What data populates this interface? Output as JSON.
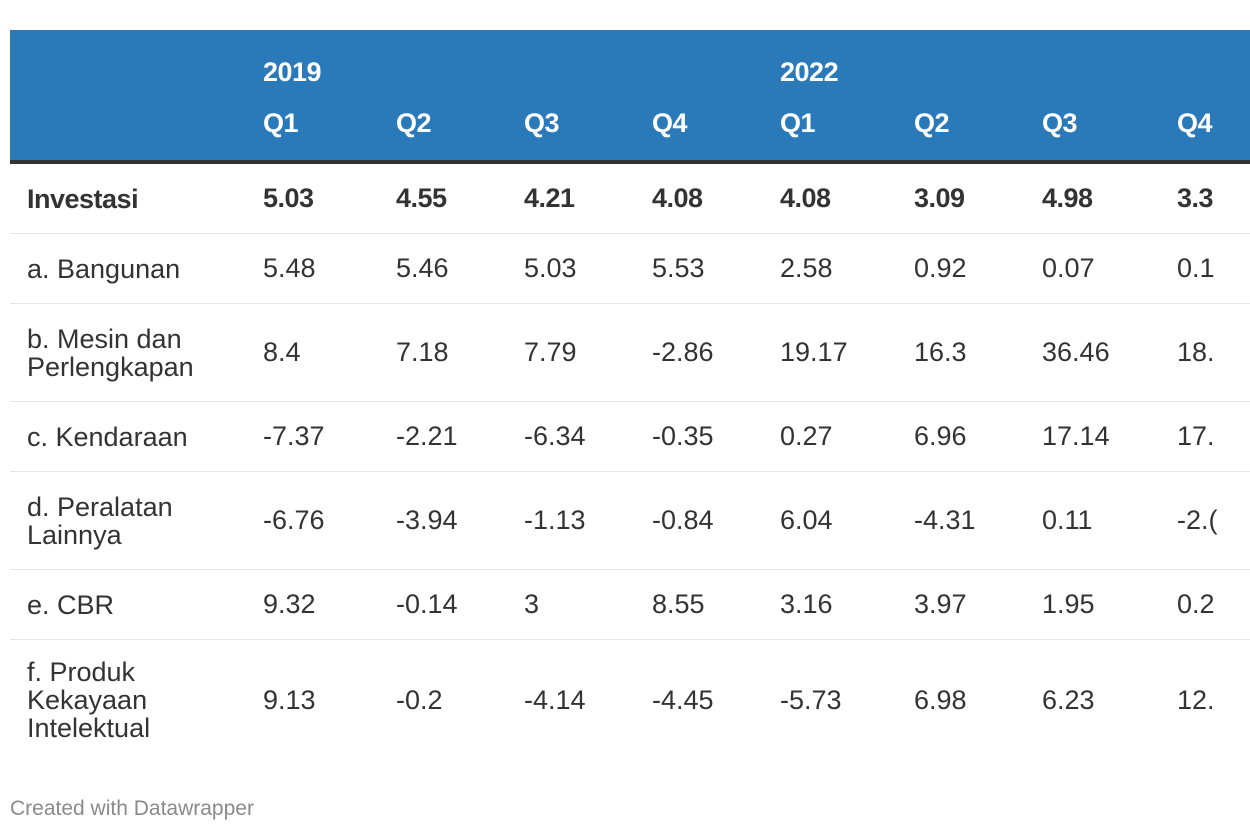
{
  "chart_data": {
    "type": "table",
    "title": "",
    "years": [
      "2019",
      "2022"
    ],
    "quarters": [
      "Q1",
      "Q2",
      "Q3",
      "Q4",
      "Q1",
      "Q2",
      "Q3",
      "Q4"
    ],
    "rows": [
      {
        "label": "Investasi",
        "bold": true,
        "values": [
          "5.03",
          "4.55",
          "4.21",
          "4.08",
          "4.08",
          "3.09",
          "4.98",
          "3.3"
        ]
      },
      {
        "label": "a. Bangunan",
        "values": [
          "5.48",
          "5.46",
          "5.03",
          "5.53",
          "2.58",
          "0.92",
          "0.07",
          "0.1"
        ]
      },
      {
        "label": "b. Mesin dan Perlengkapan",
        "values": [
          "8.4",
          "7.18",
          "7.79",
          "-2.86",
          "19.17",
          "16.3",
          "36.46",
          "18."
        ]
      },
      {
        "label": "c. Kendaraan",
        "values": [
          "-7.37",
          "-2.21",
          "-6.34",
          "-0.35",
          "0.27",
          "6.96",
          "17.14",
          "17."
        ]
      },
      {
        "label": "d. Peralatan Lainnya",
        "values": [
          "-6.76",
          "-3.94",
          "-1.13",
          "-0.84",
          "6.04",
          "-4.31",
          "0.11",
          "-2.("
        ]
      },
      {
        "label": "e. CBR",
        "values": [
          "9.32",
          "-0.14",
          "3",
          "8.55",
          "3.16",
          "3.97",
          "1.95",
          "0.2"
        ]
      },
      {
        "label": "f. Produk Kekayaan Intelektual",
        "values": [
          "9.13",
          "-0.2",
          "-4.14",
          "-4.45",
          "-5.73",
          "6.98",
          "6.23",
          "12."
        ]
      }
    ]
  },
  "footer": {
    "credit": "Created with Datawrapper"
  },
  "colors": {
    "header_bg": "#2a79b8",
    "header_text": "#ffffff",
    "body_text": "#333333",
    "footer_text": "#8a8a8a"
  }
}
